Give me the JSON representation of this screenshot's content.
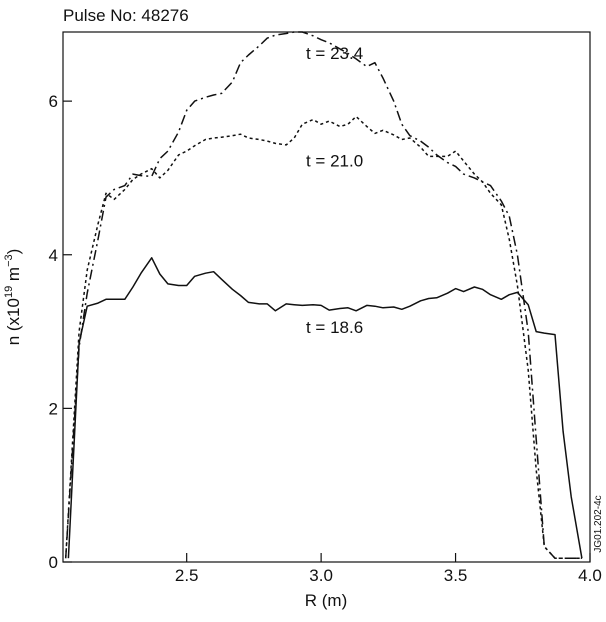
{
  "chart_data": {
    "type": "line",
    "title": "Pulse No: 48276",
    "xlabel": "R (m)",
    "ylabel": "n (x10",
    "ylabel_exp": "19",
    "ylabel_unit": " m",
    "ylabel_unit_exp": "−3",
    "ylabel_close": ")",
    "xlim": [
      2.04,
      4.0
    ],
    "ylim": [
      0,
      6.9
    ],
    "xticks": [
      2.5,
      3.0,
      3.5,
      4.0
    ],
    "xtick_labels": [
      "2.5",
      "3.0",
      "3.5",
      "4.0"
    ],
    "yticks": [
      0,
      2,
      4,
      6
    ],
    "ytick_labels": [
      "0",
      "2",
      "4",
      "6"
    ],
    "grid": false,
    "watermark": "JG01.202-4c",
    "series": [
      {
        "name": "t = 18.6",
        "style": "solid",
        "x": [
          2.06,
          2.1,
          2.13,
          2.17,
          2.2,
          2.23,
          2.27,
          2.3,
          2.33,
          2.37,
          2.4,
          2.43,
          2.47,
          2.5,
          2.53,
          2.57,
          2.6,
          2.63,
          2.67,
          2.7,
          2.73,
          2.77,
          2.8,
          2.83,
          2.87,
          2.9,
          2.93,
          2.97,
          3.0,
          3.03,
          3.07,
          3.1,
          3.13,
          3.17,
          3.2,
          3.23,
          3.27,
          3.3,
          3.33,
          3.37,
          3.4,
          3.43,
          3.47,
          3.5,
          3.53,
          3.57,
          3.6,
          3.63,
          3.67,
          3.7,
          3.73,
          3.77,
          3.8,
          3.83,
          3.87,
          3.9,
          3.93,
          3.97
        ],
        "values": [
          0.05,
          2.85,
          3.33,
          3.37,
          3.42,
          3.42,
          3.42,
          3.58,
          3.76,
          3.96,
          3.75,
          3.62,
          3.6,
          3.6,
          3.72,
          3.76,
          3.78,
          3.68,
          3.55,
          3.47,
          3.38,
          3.36,
          3.36,
          3.27,
          3.36,
          3.35,
          3.34,
          3.35,
          3.34,
          3.28,
          3.3,
          3.31,
          3.27,
          3.34,
          3.33,
          3.31,
          3.32,
          3.29,
          3.33,
          3.4,
          3.43,
          3.44,
          3.5,
          3.56,
          3.52,
          3.58,
          3.55,
          3.48,
          3.42,
          3.48,
          3.51,
          3.35,
          3.0,
          2.98,
          2.96,
          1.7,
          0.85,
          0.05
        ]
      },
      {
        "name": "t = 21.0",
        "style": "dotted",
        "x": [
          2.05,
          2.1,
          2.13,
          2.17,
          2.2,
          2.23,
          2.27,
          2.3,
          2.33,
          2.37,
          2.4,
          2.43,
          2.47,
          2.5,
          2.53,
          2.57,
          2.6,
          2.63,
          2.67,
          2.7,
          2.73,
          2.77,
          2.8,
          2.83,
          2.87,
          2.9,
          2.93,
          2.97,
          3.0,
          3.03,
          3.07,
          3.1,
          3.13,
          3.17,
          3.2,
          3.23,
          3.27,
          3.3,
          3.33,
          3.37,
          3.4,
          3.43,
          3.47,
          3.5,
          3.53,
          3.57,
          3.6,
          3.63,
          3.67,
          3.7,
          3.73,
          3.77,
          3.8,
          3.83,
          3.87,
          3.9,
          3.93,
          3.97
        ],
        "values": [
          0.05,
          3.0,
          3.8,
          4.4,
          4.8,
          4.72,
          4.85,
          4.98,
          5.05,
          5.12,
          5.0,
          5.1,
          5.3,
          5.35,
          5.42,
          5.5,
          5.52,
          5.53,
          5.55,
          5.57,
          5.52,
          5.5,
          5.48,
          5.45,
          5.43,
          5.52,
          5.7,
          5.76,
          5.7,
          5.74,
          5.67,
          5.7,
          5.8,
          5.67,
          5.58,
          5.62,
          5.56,
          5.5,
          5.52,
          5.4,
          5.28,
          5.28,
          5.28,
          5.35,
          5.22,
          5.05,
          4.95,
          4.8,
          4.65,
          4.2,
          3.6,
          2.5,
          1.2,
          0.2,
          0.05,
          0.05,
          0.05,
          0.05
        ]
      },
      {
        "name": "t = 23.4",
        "style": "dash-dot",
        "x": [
          2.05,
          2.1,
          2.13,
          2.17,
          2.2,
          2.23,
          2.27,
          2.3,
          2.33,
          2.37,
          2.4,
          2.43,
          2.47,
          2.5,
          2.53,
          2.57,
          2.6,
          2.63,
          2.67,
          2.7,
          2.73,
          2.77,
          2.8,
          2.83,
          2.87,
          2.9,
          2.93,
          2.97,
          3.0,
          3.03,
          3.07,
          3.1,
          3.13,
          3.17,
          3.2,
          3.23,
          3.27,
          3.3,
          3.33,
          3.37,
          3.4,
          3.43,
          3.47,
          3.5,
          3.53,
          3.57,
          3.6,
          3.63,
          3.67,
          3.7,
          3.73,
          3.77,
          3.8,
          3.83,
          3.87,
          3.9,
          3.93,
          3.97
        ],
        "values": [
          0.05,
          2.8,
          3.5,
          4.2,
          4.75,
          4.85,
          4.9,
          5.05,
          5.03,
          5.02,
          5.25,
          5.35,
          5.6,
          5.88,
          6.0,
          6.05,
          6.08,
          6.1,
          6.25,
          6.5,
          6.6,
          6.72,
          6.82,
          6.86,
          6.88,
          6.9,
          6.9,
          6.85,
          6.8,
          6.76,
          6.68,
          6.62,
          6.55,
          6.45,
          6.5,
          6.3,
          6.0,
          5.7,
          5.55,
          5.48,
          5.4,
          5.3,
          5.2,
          5.15,
          5.05,
          5.0,
          4.95,
          4.9,
          4.7,
          4.5,
          4.0,
          3.0,
          1.6,
          0.2,
          0.05,
          0.05,
          0.05,
          0.05
        ]
      }
    ],
    "annotations": [
      {
        "text": "t = 23.4",
        "x": 3.05,
        "y": 6.55
      },
      {
        "text": "t = 21.0",
        "x": 3.05,
        "y": 5.15
      },
      {
        "text": "t = 18.6",
        "x": 3.05,
        "y": 2.98
      }
    ]
  }
}
